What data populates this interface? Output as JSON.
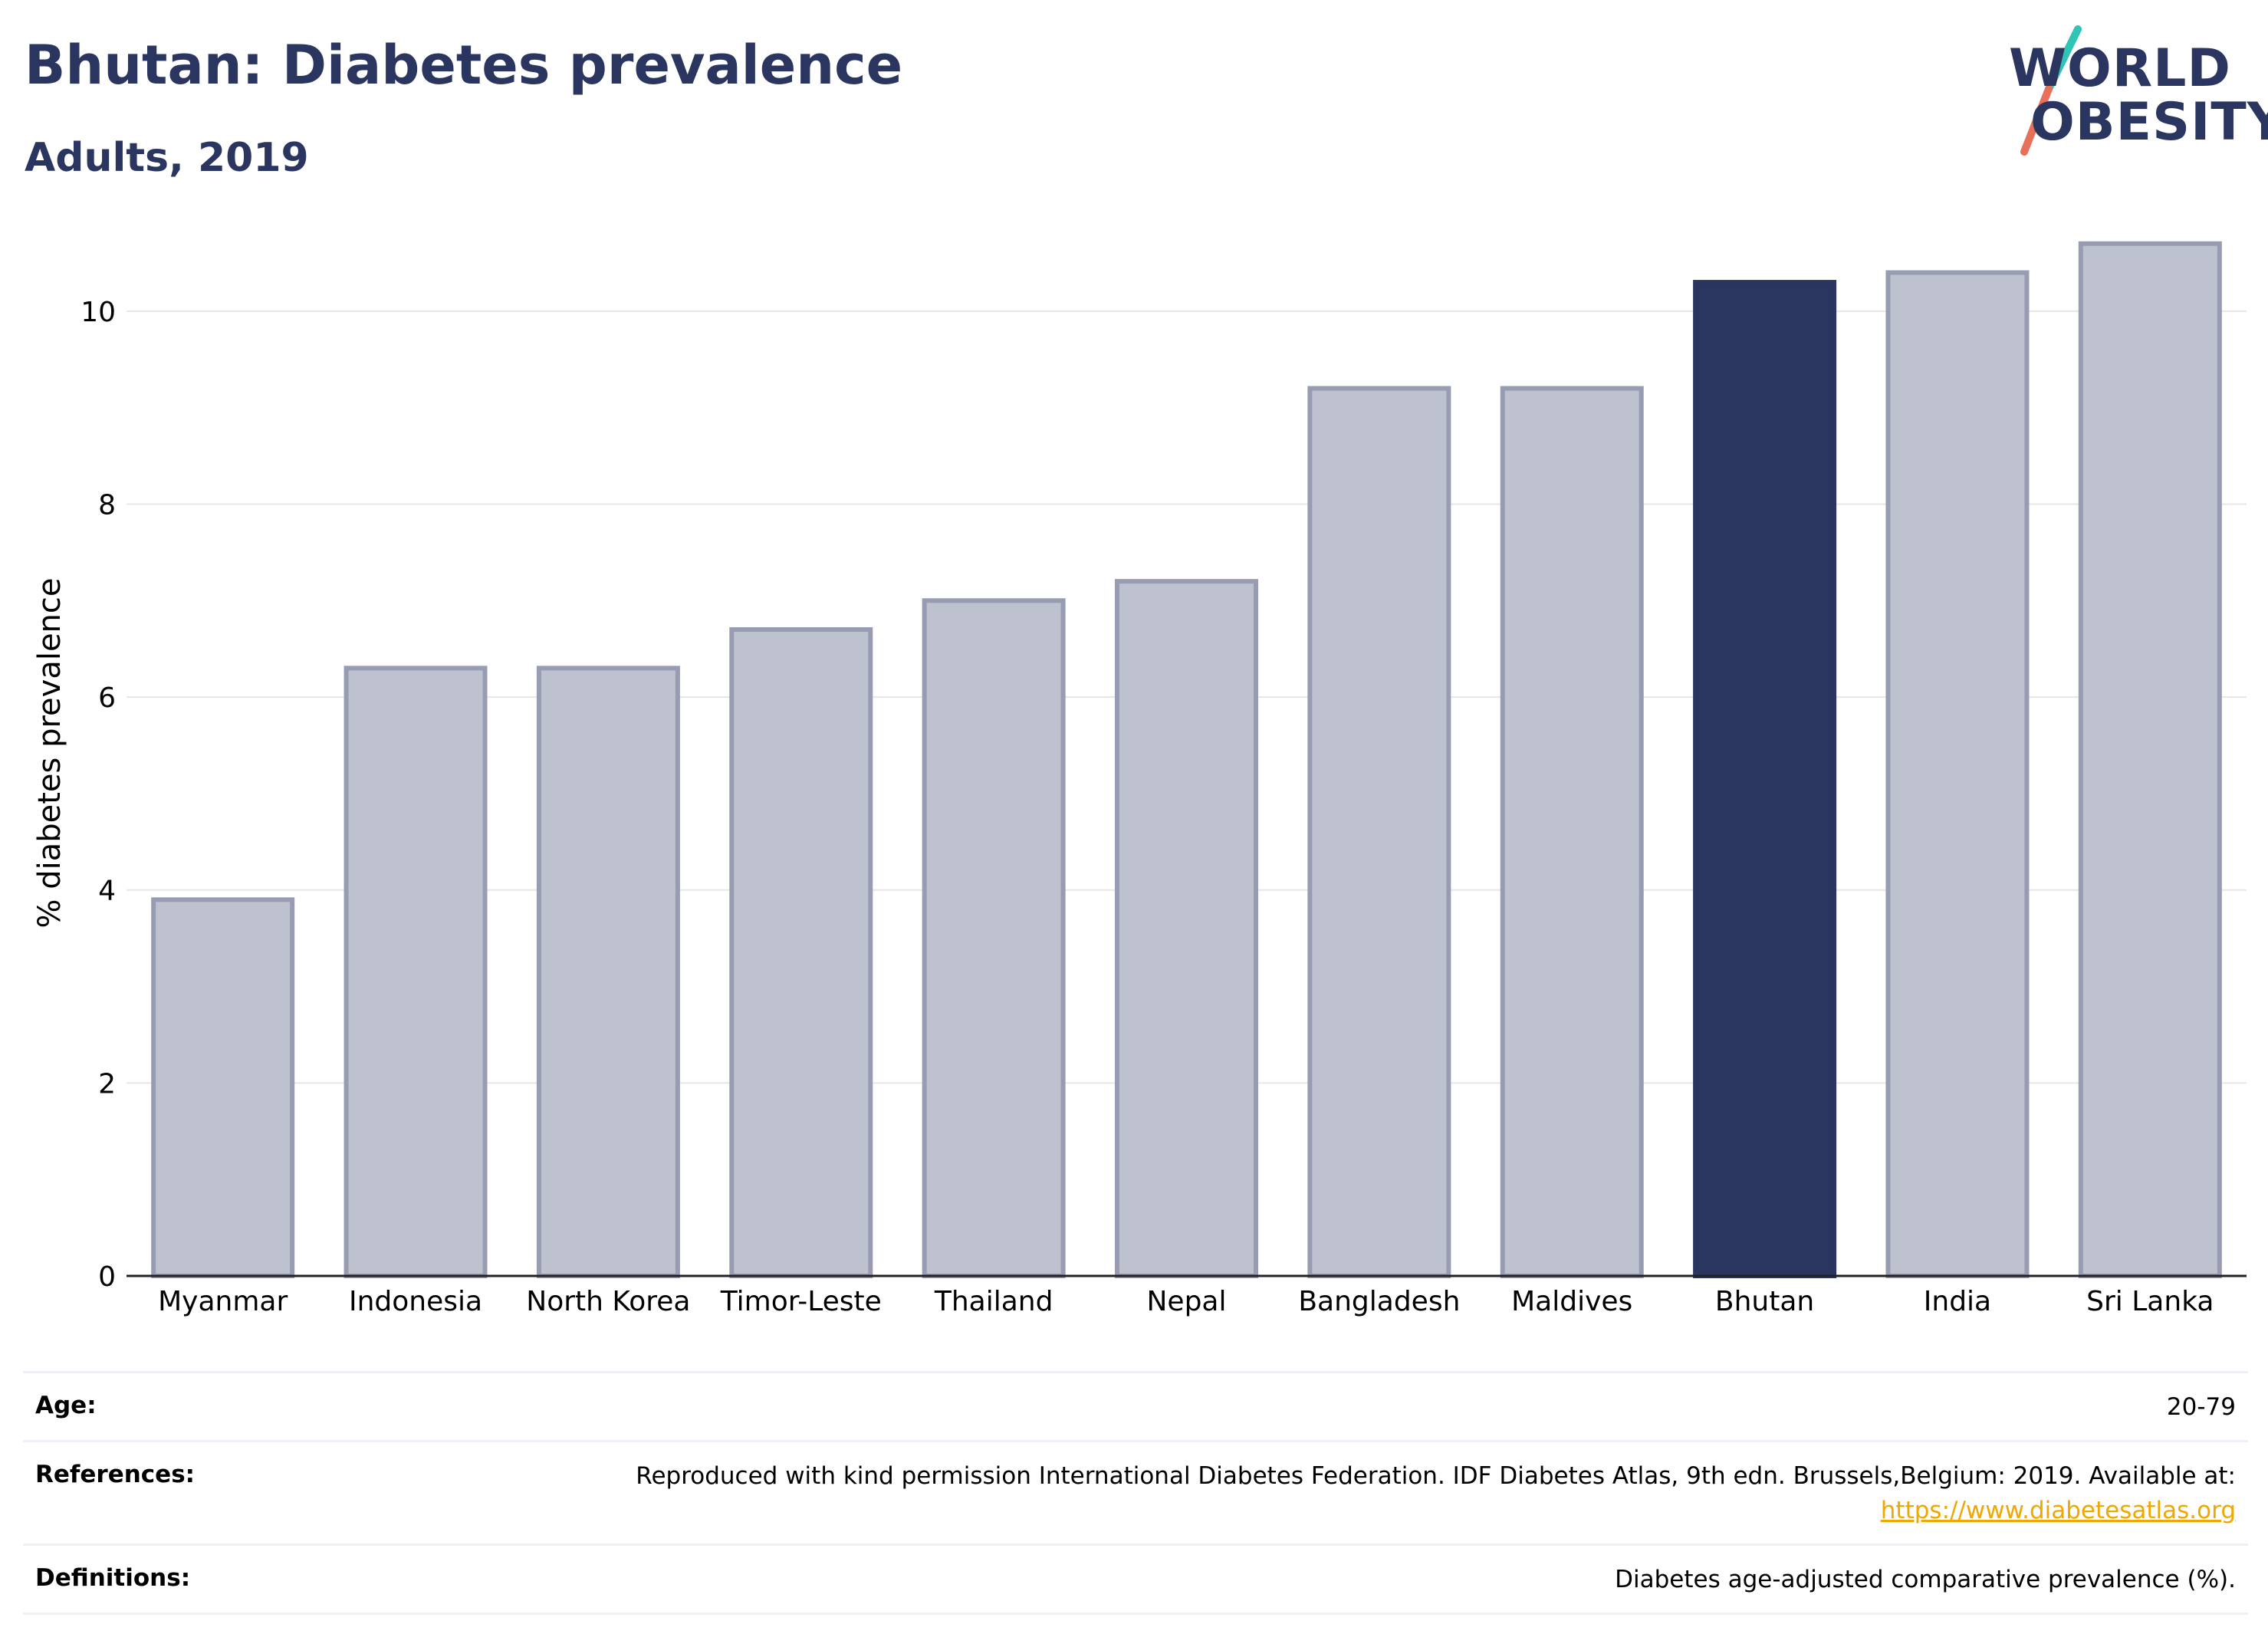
{
  "header": {
    "title": "Bhutan: Diabetes prevalence",
    "subtitle": "Adults, 2019"
  },
  "logo": {
    "line1": "WORLD",
    "line2": "OBESITY",
    "colors": {
      "text": "#2a3560",
      "slash_top": "#2ec4b6",
      "slash_bottom": "#e8705a"
    }
  },
  "chart_data": {
    "type": "bar",
    "categories": [
      "Myanmar",
      "Indonesia",
      "North Korea",
      "Timor-Leste",
      "Thailand",
      "Nepal",
      "Bangladesh",
      "Maldives",
      "Bhutan",
      "India",
      "Sri Lanka"
    ],
    "values": [
      3.9,
      6.3,
      6.3,
      6.7,
      7.0,
      7.2,
      9.2,
      9.2,
      10.3,
      10.4,
      10.7
    ],
    "highlight": "Bhutan",
    "ylabel": "% diabetes prevalence",
    "yticks": [
      0,
      2,
      4,
      6,
      8,
      10
    ],
    "ylim": [
      0,
      11
    ],
    "grid": true,
    "colors": {
      "bar": "#2a3560",
      "bar_muted_fill": "#bec2cf",
      "bar_muted_stroke": "#979cb2",
      "grid": "#e6e6e6"
    }
  },
  "info": {
    "age": {
      "label": "Age:",
      "value": "20-79"
    },
    "references": {
      "label": "References:",
      "value": "Reproduced with kind permission International Diabetes Federation. IDF Diabetes Atlas, 9th edn. Brussels,Belgium: 2019. Available at:",
      "link": "https://www.diabetesatlas.org"
    },
    "definitions": {
      "label": "Definitions:",
      "value": "Diabetes age-adjusted comparative prevalence (%)."
    }
  }
}
